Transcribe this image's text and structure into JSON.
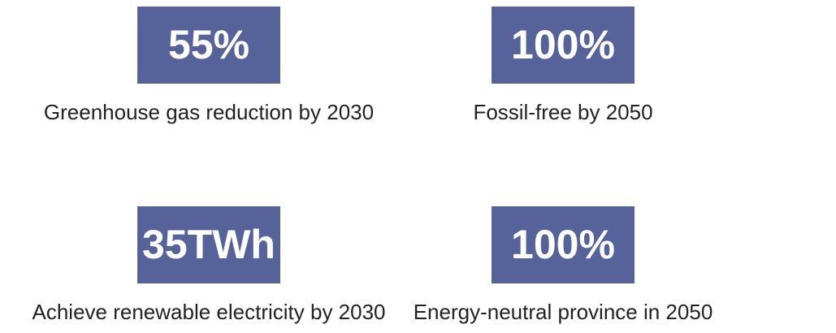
{
  "items": [
    {
      "value": "55%",
      "label": "Greenhouse gas reduction by 2030"
    },
    {
      "value": "100%",
      "label": "Fossil-free by 2050"
    },
    {
      "value": "35TWh",
      "label": "Achieve renewable electricity by 2030"
    },
    {
      "value": "100%",
      "label": "Energy-neutral province in 2050"
    }
  ]
}
